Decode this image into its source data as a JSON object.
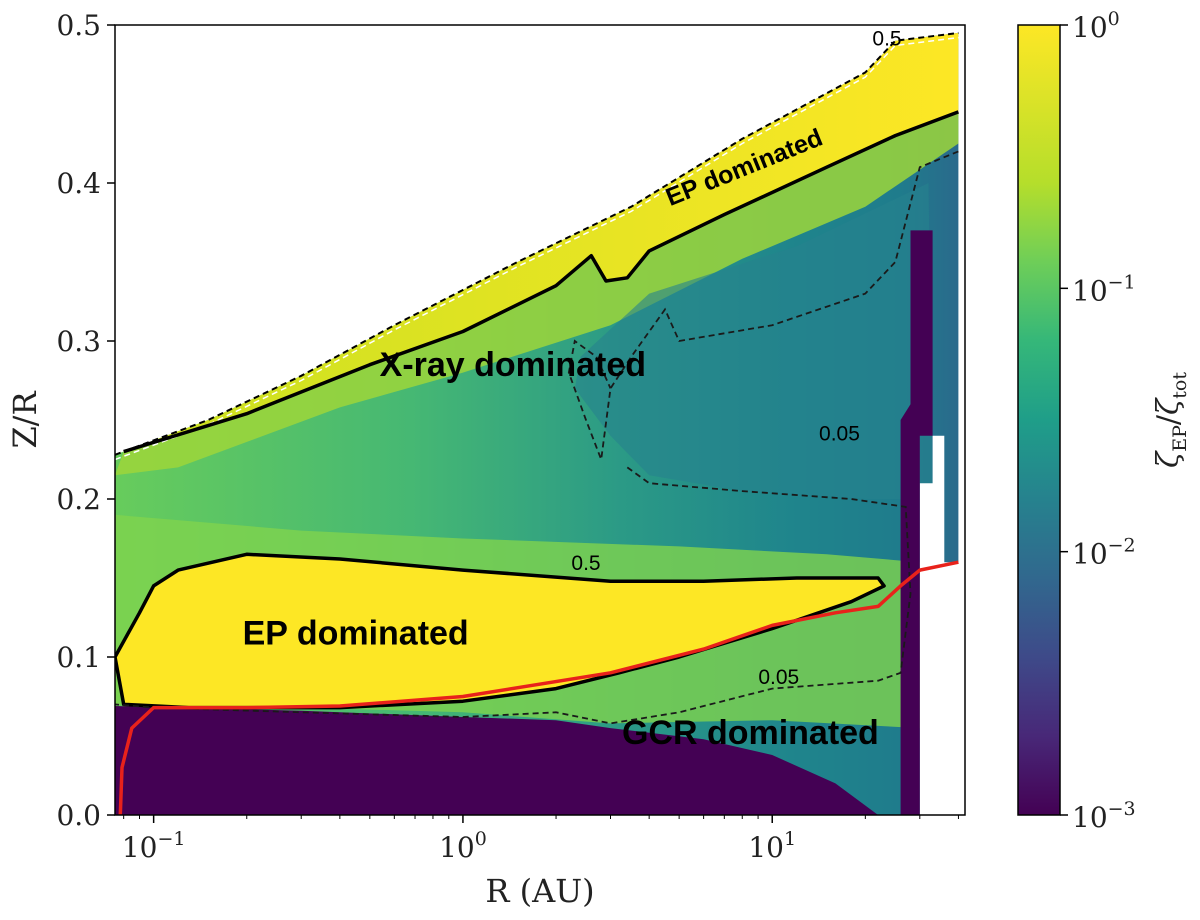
{
  "chart_data": {
    "type": "heatmap",
    "title": "",
    "xlabel": "R (AU)",
    "ylabel": "Z/R",
    "x_scale": "log",
    "xlim": [
      0.075,
      42
    ],
    "ylim": [
      0.0,
      0.5
    ],
    "x_ticks": [
      {
        "value": 0.1,
        "base": "10",
        "exp": "−1"
      },
      {
        "value": 1,
        "base": "10",
        "exp": "0"
      },
      {
        "value": 10,
        "base": "10",
        "exp": "1"
      }
    ],
    "y_ticks": [
      {
        "value": 0.0,
        "label": "0.0"
      },
      {
        "value": 0.1,
        "label": "0.1"
      },
      {
        "value": 0.2,
        "label": "0.2"
      },
      {
        "value": 0.3,
        "label": "0.3"
      },
      {
        "value": 0.4,
        "label": "0.4"
      },
      {
        "value": 0.5,
        "label": "0.5"
      }
    ],
    "colorbar": {
      "label_main": "ζ",
      "label_sub_numerator": "EP",
      "label_sub_denominator": "tot",
      "scale": "log",
      "range": [
        0.001,
        1
      ],
      "colormap": "viridis",
      "ticks": [
        {
          "value": 1,
          "base": "10",
          "exp": "0"
        },
        {
          "value": 0.1,
          "base": "10",
          "exp": "−1"
        },
        {
          "value": 0.01,
          "base": "10",
          "exp": "−2"
        },
        {
          "value": 0.001,
          "base": "10",
          "exp": "−3"
        }
      ]
    },
    "region_labels": [
      {
        "text": "EP dominated",
        "r": 0.45,
        "z": 0.108,
        "size": "large",
        "angle": 0
      },
      {
        "text": "X-ray dominated",
        "r": 1.45,
        "z": 0.278,
        "size": "large",
        "angle": 0
      },
      {
        "text": "GCR dominated",
        "r": 8.5,
        "z": 0.045,
        "size": "large",
        "angle": 0
      },
      {
        "text": "EP dominated",
        "r": 8.3,
        "z": 0.405,
        "size": "medium",
        "angle": -22
      }
    ],
    "contour_labels": [
      {
        "text": "0.5",
        "r": 23.5,
        "z": 0.487
      },
      {
        "text": "0.5",
        "r": 2.5,
        "z": 0.155
      },
      {
        "text": "0.05",
        "r": 16.5,
        "z": 0.237
      },
      {
        "text": "0.05",
        "r": 10.5,
        "z": 0.083
      }
    ],
    "disk_surface": [
      [
        0.075,
        0.228
      ],
      [
        0.15,
        0.25
      ],
      [
        0.3,
        0.278
      ],
      [
        0.6,
        0.31
      ],
      [
        1.5,
        0.35
      ],
      [
        3.5,
        0.385
      ],
      [
        8,
        0.428
      ],
      [
        20,
        0.47
      ],
      [
        25,
        0.49
      ],
      [
        40,
        0.495
      ]
    ],
    "contour_0p5_upper": [
      [
        0.08,
        0.23
      ],
      [
        0.2,
        0.254
      ],
      [
        0.5,
        0.285
      ],
      [
        1,
        0.306
      ],
      [
        2,
        0.335
      ],
      [
        2.6,
        0.354
      ],
      [
        2.9,
        0.338
      ],
      [
        3.4,
        0.34
      ],
      [
        4,
        0.357
      ],
      [
        7,
        0.38
      ],
      [
        15,
        0.41
      ],
      [
        25,
        0.43
      ],
      [
        40,
        0.445
      ]
    ],
    "contour_0p5_lower": [
      [
        0.12,
        0.155
      ],
      [
        0.2,
        0.165
      ],
      [
        0.4,
        0.162
      ],
      [
        1,
        0.155
      ],
      [
        3,
        0.148
      ],
      [
        6,
        0.148
      ],
      [
        12,
        0.15
      ],
      [
        22,
        0.15
      ],
      [
        23,
        0.145
      ],
      [
        18,
        0.135
      ],
      [
        10,
        0.118
      ],
      [
        5,
        0.1
      ],
      [
        3.2,
        0.09
      ],
      [
        2,
        0.08
      ],
      [
        1,
        0.072
      ],
      [
        0.4,
        0.068
      ],
      [
        0.2,
        0.068
      ],
      [
        0.13,
        0.068
      ],
      [
        0.08,
        0.07
      ],
      [
        0.075,
        0.1
      ],
      [
        0.09,
        0.128
      ],
      [
        0.1,
        0.145
      ],
      [
        0.12,
        0.155
      ]
    ],
    "contour_0p05_upper": [
      [
        40,
        0.42
      ],
      [
        30,
        0.41
      ],
      [
        25,
        0.35
      ],
      [
        20,
        0.33
      ],
      [
        10,
        0.31
      ],
      [
        5,
        0.3
      ],
      [
        4.5,
        0.32
      ],
      [
        3.5,
        0.29
      ],
      [
        3,
        0.27
      ],
      [
        2.8,
        0.225
      ],
      [
        2.5,
        0.25
      ],
      [
        2.2,
        0.28
      ],
      [
        2.3,
        0.3
      ],
      [
        2.7,
        0.29
      ],
      [
        3,
        0.27
      ]
    ],
    "contour_0p05_lower": [
      [
        3.4,
        0.22
      ],
      [
        4,
        0.21
      ],
      [
        8,
        0.205
      ],
      [
        18,
        0.2
      ],
      [
        27,
        0.195
      ],
      [
        28,
        0.14
      ],
      [
        26,
        0.09
      ],
      [
        22,
        0.085
      ],
      [
        10,
        0.08
      ],
      [
        5,
        0.065
      ],
      [
        3,
        0.058
      ],
      [
        2,
        0.065
      ],
      [
        1,
        0.062
      ],
      [
        0.3,
        0.065
      ],
      [
        0.1,
        0.068
      ],
      [
        0.075,
        0.07
      ]
    ],
    "red_line": [
      [
        0.078,
        0.0
      ],
      [
        0.079,
        0.03
      ],
      [
        0.085,
        0.055
      ],
      [
        0.1,
        0.068
      ],
      [
        0.2,
        0.068
      ],
      [
        0.4,
        0.069
      ],
      [
        1,
        0.075
      ],
      [
        3,
        0.09
      ],
      [
        6,
        0.105
      ],
      [
        10,
        0.12
      ],
      [
        16,
        0.128
      ],
      [
        22,
        0.132
      ],
      [
        26,
        0.145
      ],
      [
        30,
        0.155
      ],
      [
        40,
        0.16
      ]
    ],
    "colors": {
      "ep_region": "#fde725",
      "xray_region": "#3aaa77",
      "gcr_region": "#440154",
      "contour": "#000000",
      "red_line": "#e8221b"
    }
  }
}
